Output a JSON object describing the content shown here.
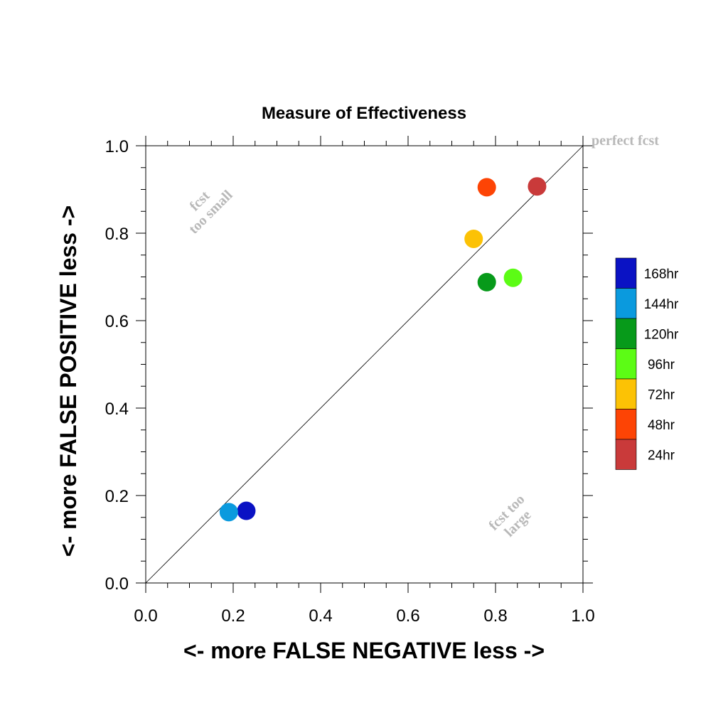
{
  "chart_data": {
    "type": "scatter",
    "title": "Measure of Effectiveness",
    "xlabel": "<- more   FALSE NEGATIVE   less ->",
    "ylabel": "<- more   FALSE POSITIVE   less ->",
    "xlim": [
      0,
      1
    ],
    "ylim": [
      0,
      1
    ],
    "xticks": [
      "0.0",
      "0.2",
      "0.4",
      "0.6",
      "0.8",
      "1.0"
    ],
    "yticks": [
      "0.0",
      "0.2",
      "0.4",
      "0.6",
      "0.8",
      "1.0"
    ],
    "grid": false,
    "diagonal_reference": true,
    "legend_position": "right",
    "annotations": {
      "perfect": "perfect fcst",
      "too_small_line1": "fcst",
      "too_small_line2": "too small",
      "too_large_line1": "fcst too",
      "too_large_line2": "large"
    },
    "series": [
      {
        "name": "168hr",
        "color": "#0a12c4",
        "x": 0.23,
        "y": 0.165
      },
      {
        "name": "144hr",
        "color": "#0a9ade",
        "x": 0.19,
        "y": 0.162
      },
      {
        "name": "120hr",
        "color": "#079a1a",
        "x": 0.78,
        "y": 0.688
      },
      {
        "name": "96hr",
        "color": "#5cfc15",
        "x": 0.84,
        "y": 0.698
      },
      {
        "name": "72hr",
        "color": "#fcc205",
        "x": 0.75,
        "y": 0.787
      },
      {
        "name": "48hr",
        "color": "#fd4405",
        "x": 0.78,
        "y": 0.905
      },
      {
        "name": "24hr",
        "color": "#c93a3a",
        "x": 0.895,
        "y": 0.907
      }
    ]
  }
}
